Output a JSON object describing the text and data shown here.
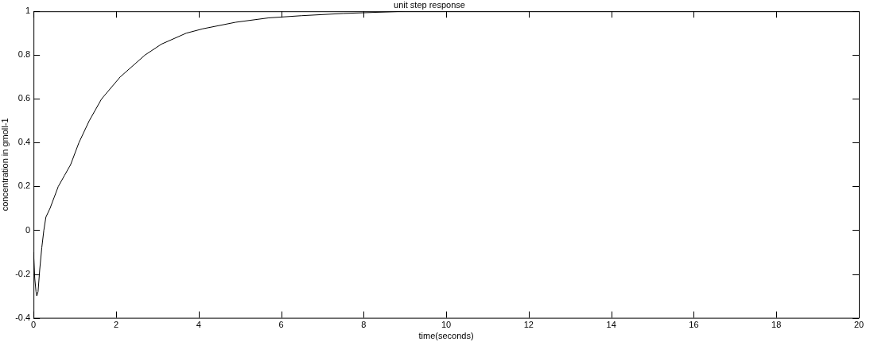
{
  "chart_data": {
    "type": "line",
    "title": "unit step response",
    "xlabel": "time(seconds)",
    "ylabel": "concentration in gmoll-1",
    "x": [
      0,
      0.03,
      0.06,
      0.08,
      0.11,
      0.15,
      0.2,
      0.25,
      0.3,
      0.4,
      0.5,
      0.6,
      0.75,
      0.9,
      1.1,
      1.35,
      1.65,
      2.1,
      2.7,
      3.1,
      3.7,
      4.1,
      4.9,
      5.7,
      6.5,
      7.5,
      9,
      12,
      16,
      20
    ],
    "series": [
      {
        "color": "#000000",
        "values": [
          -0.1,
          -0.22,
          -0.28,
          -0.3,
          -0.28,
          -0.18,
          -0.08,
          0,
          0.06,
          0.1,
          0.15,
          0.2,
          0.25,
          0.3,
          0.4,
          0.5,
          0.6,
          0.7,
          0.8,
          0.85,
          0.9,
          0.92,
          0.95,
          0.97,
          0.98,
          0.99,
          1,
          1,
          1,
          1
        ]
      }
    ],
    "xlim": [
      0,
      20
    ],
    "xticks": [
      0,
      2,
      4,
      6,
      8,
      10,
      12,
      14,
      16,
      18,
      20
    ],
    "ylim": [
      -0.4,
      1
    ],
    "yticks": [
      -0.4,
      -0.2,
      0,
      0.2,
      0.4,
      0.6,
      0.8,
      1
    ],
    "grid": false,
    "legend": false,
    "marker": "none",
    "line_style": "solid"
  }
}
